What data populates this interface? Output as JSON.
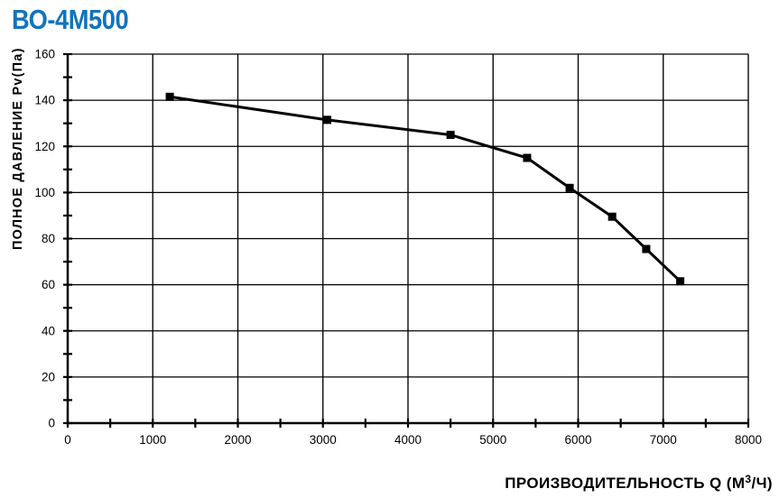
{
  "title": "ВО-4М500",
  "title_color": "#1273BC",
  "chart_data": {
    "type": "line",
    "title": "ВО-4М500",
    "xlabel": "ПРОИЗВОДИТЕЛЬНОСТЬ  Q  (М³/Ч)",
    "ylabel": "ПОЛНОЕ ДАВЛЕНИЕ  Pv(Па)",
    "xlim": [
      0,
      8000
    ],
    "ylim": [
      0,
      160
    ],
    "x_major_step": 1000,
    "x_minor_step": 500,
    "y_major_step": 20,
    "y_minor_step": 10,
    "x_ticks": [
      0,
      1000,
      2000,
      3000,
      4000,
      5000,
      6000,
      7000,
      8000
    ],
    "y_ticks": [
      0,
      20,
      40,
      60,
      80,
      100,
      120,
      140,
      160
    ],
    "grid": true,
    "legend": false,
    "line_color": "#000000",
    "marker": "square",
    "series": [
      {
        "name": "pressure-flow-curve",
        "points": [
          [
            1200,
            141.5
          ],
          [
            3050,
            131.5
          ],
          [
            4500,
            125
          ],
          [
            5400,
            115
          ],
          [
            5900,
            102
          ],
          [
            6400,
            89.5
          ],
          [
            6800,
            75.5
          ],
          [
            7200,
            61.5
          ]
        ]
      }
    ]
  }
}
